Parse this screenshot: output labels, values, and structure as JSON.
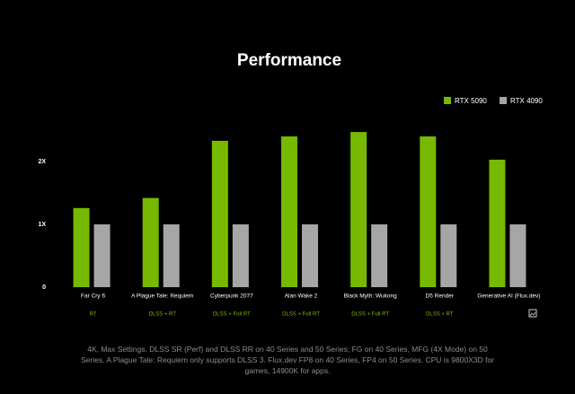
{
  "chart_data": {
    "type": "bar",
    "title": "Performance",
    "categories": [
      "Far Cry 6",
      "A Plague Tale: Requiem",
      "Cyberpunk 2077",
      "Alan Wake 2",
      "Black Myth: Wukong",
      "D5 Render",
      "Generative AI (Flux.dev)"
    ],
    "subcategories": [
      "RT",
      "DLSS + RT",
      "DLSS + Full RT",
      "DLSS + Full RT",
      "DLSS + Full RT",
      "DLSS + RT",
      null
    ],
    "series": [
      {
        "name": "RTX 5090",
        "color": "#76b900",
        "values": [
          1.26,
          1.42,
          2.33,
          2.4,
          2.47,
          2.4,
          2.03
        ]
      },
      {
        "name": "RTX 4090",
        "color": "#a6a6a6",
        "values": [
          1,
          1,
          1,
          1,
          1,
          1,
          1
        ]
      }
    ],
    "ylim": [
      0,
      2.6
    ],
    "yticks": [
      0,
      {
        "value": 1,
        "label": "1X"
      },
      {
        "value": 2,
        "label": "2X"
      }
    ],
    "grid": false,
    "legend": "top-right",
    "footnote": "4K, Max Settings. DLSS SR (Perf) and DLSS RR on 40 Series and 50 Series; FG on 40 Series, MFG (4X Mode) on 50 Series. A Plague Tale: Requiem only supports DLSS 3. Flux.dev FP8 on 40 Series, FP4 on 50 Series. CPU is 9800X3D for games, 14900K for apps."
  }
}
